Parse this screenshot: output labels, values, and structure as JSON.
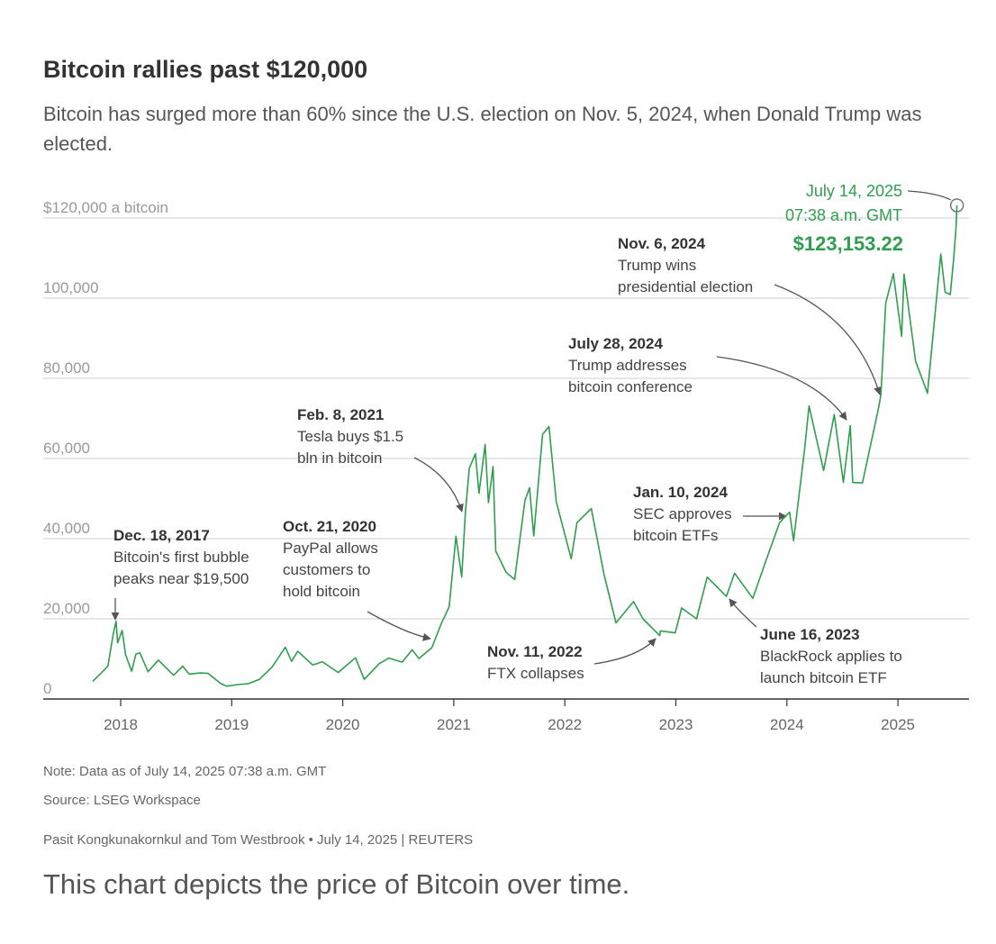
{
  "chart_data": {
    "type": "line",
    "title": "Bitcoin rallies past $120,000",
    "subtitle": "Bitcoin has surged more than 60% since the U.S. election on Nov. 5, 2024, when Donald Trump was elected.",
    "ylabel": "$120,000 a bitcoin",
    "y_ticks": [
      {
        "value": 0,
        "label": "0"
      },
      {
        "value": 20000,
        "label": "20,000"
      },
      {
        "value": 40000,
        "label": "40,000"
      },
      {
        "value": 60000,
        "label": "60,000"
      },
      {
        "value": 80000,
        "label": "80,000"
      },
      {
        "value": 100000,
        "label": "100,000"
      },
      {
        "value": 120000,
        "label": "$120,000 a bitcoin"
      }
    ],
    "x_ticks": [
      "2018",
      "2019",
      "2020",
      "2021",
      "2022",
      "2023",
      "2024",
      "2025"
    ],
    "ylim": [
      0,
      120000
    ],
    "grid": true,
    "series": [
      {
        "color": "#2f9e4f",
        "points": [
          [
            "2017-10-01",
            4400
          ],
          [
            "2017-11-01",
            6700
          ],
          [
            "2017-11-20",
            8200
          ],
          [
            "2017-12-07",
            16000
          ],
          [
            "2017-12-17",
            19400
          ],
          [
            "2017-12-22",
            14000
          ],
          [
            "2018-01-06",
            17100
          ],
          [
            "2018-01-17",
            11100
          ],
          [
            "2018-02-06",
            6900
          ],
          [
            "2018-02-20",
            11200
          ],
          [
            "2018-03-05",
            11500
          ],
          [
            "2018-04-01",
            6800
          ],
          [
            "2018-05-05",
            9700
          ],
          [
            "2018-06-24",
            5900
          ],
          [
            "2018-07-24",
            8200
          ],
          [
            "2018-08-14",
            6200
          ],
          [
            "2018-09-20",
            6500
          ],
          [
            "2018-10-15",
            6400
          ],
          [
            "2018-11-25",
            3900
          ],
          [
            "2018-12-15",
            3200
          ],
          [
            "2019-01-20",
            3600
          ],
          [
            "2019-02-24",
            3800
          ],
          [
            "2019-04-02",
            4900
          ],
          [
            "2019-05-14",
            8000
          ],
          [
            "2019-06-26",
            12900
          ],
          [
            "2019-07-17",
            9400
          ],
          [
            "2019-08-06",
            11900
          ],
          [
            "2019-09-24",
            8500
          ],
          [
            "2019-10-26",
            9300
          ],
          [
            "2019-12-17",
            6600
          ],
          [
            "2020-02-12",
            10300
          ],
          [
            "2020-03-12",
            4900
          ],
          [
            "2020-04-30",
            8800
          ],
          [
            "2020-06-01",
            10200
          ],
          [
            "2020-07-15",
            9200
          ],
          [
            "2020-08-17",
            12300
          ],
          [
            "2020-09-08",
            10100
          ],
          [
            "2020-10-21",
            12800
          ],
          [
            "2020-11-20",
            18700
          ],
          [
            "2020-12-17",
            23000
          ],
          [
            "2021-01-08",
            40600
          ],
          [
            "2021-01-27",
            30400
          ],
          [
            "2021-02-08",
            46200
          ],
          [
            "2021-02-21",
            57500
          ],
          [
            "2021-03-13",
            61200
          ],
          [
            "2021-03-25",
            51300
          ],
          [
            "2021-04-14",
            63500
          ],
          [
            "2021-04-25",
            49000
          ],
          [
            "2021-05-10",
            58000
          ],
          [
            "2021-05-19",
            36900
          ],
          [
            "2021-06-22",
            31600
          ],
          [
            "2021-07-20",
            29800
          ],
          [
            "2021-08-23",
            49500
          ],
          [
            "2021-09-07",
            52700
          ],
          [
            "2021-09-21",
            40700
          ],
          [
            "2021-10-20",
            66000
          ],
          [
            "2021-11-10",
            68000
          ],
          [
            "2021-12-04",
            49200
          ],
          [
            "2022-01-22",
            35000
          ],
          [
            "2022-02-10",
            44000
          ],
          [
            "2022-03-29",
            47500
          ],
          [
            "2022-05-10",
            31000
          ],
          [
            "2022-06-18",
            19000
          ],
          [
            "2022-08-15",
            24300
          ],
          [
            "2022-09-15",
            20000
          ],
          [
            "2022-11-09",
            15800
          ],
          [
            "2022-11-11",
            17000
          ],
          [
            "2022-12-30",
            16500
          ],
          [
            "2023-01-20",
            22700
          ],
          [
            "2023-03-10",
            20000
          ],
          [
            "2023-04-14",
            30400
          ],
          [
            "2023-06-16",
            25600
          ],
          [
            "2023-07-13",
            31400
          ],
          [
            "2023-09-11",
            25100
          ],
          [
            "2023-10-24",
            34500
          ],
          [
            "2023-12-08",
            44000
          ],
          [
            "2024-01-10",
            46600
          ],
          [
            "2024-01-23",
            39500
          ],
          [
            "2024-02-28",
            62000
          ],
          [
            "2024-03-14",
            73100
          ],
          [
            "2024-05-01",
            57000
          ],
          [
            "2024-06-05",
            71000
          ],
          [
            "2024-07-05",
            54000
          ],
          [
            "2024-07-28",
            68200
          ],
          [
            "2024-08-05",
            54000
          ],
          [
            "2024-09-06",
            53900
          ],
          [
            "2024-10-29",
            72500
          ],
          [
            "2024-11-06",
            75900
          ],
          [
            "2024-11-22",
            98900
          ],
          [
            "2024-12-17",
            106100
          ],
          [
            "2025-01-13",
            90500
          ],
          [
            "2025-01-21",
            106000
          ],
          [
            "2025-02-28",
            84300
          ],
          [
            "2025-04-08",
            76300
          ],
          [
            "2025-05-22",
            111000
          ],
          [
            "2025-06-05",
            101500
          ],
          [
            "2025-06-22",
            100900
          ],
          [
            "2025-07-03",
            109600
          ],
          [
            "2025-07-11",
            117500
          ],
          [
            "2025-07-14",
            123153.22
          ]
        ]
      }
    ],
    "annotations": [
      {
        "date": "2017-12-18",
        "value": 19500,
        "title": "Dec. 18, 2017",
        "lines": [
          "Bitcoin's first bubble",
          "peaks near $19,500"
        ]
      },
      {
        "date": "2020-10-21",
        "value": 12800,
        "title": "Oct. 21, 2020",
        "lines": [
          "PayPal allows",
          "customers to",
          "hold bitcoin"
        ]
      },
      {
        "date": "2021-02-08",
        "value": 46200,
        "title": "Feb. 8, 2021",
        "lines": [
          "Tesla buys $1.5",
          "bln in bitcoin"
        ]
      },
      {
        "date": "2022-11-11",
        "value": 17000,
        "title": "Nov. 11, 2022",
        "lines": [
          "FTX collapses"
        ]
      },
      {
        "date": "2023-06-16",
        "value": 25600,
        "title": "June 16, 2023",
        "lines": [
          "BlackRock applies to",
          "launch bitcoin ETF"
        ]
      },
      {
        "date": "2024-01-10",
        "value": 46600,
        "title": "Jan. 10, 2024",
        "lines": [
          "SEC approves",
          "bitcoin ETFs"
        ]
      },
      {
        "date": "2024-07-28",
        "value": 68200,
        "title": "July 28, 2024",
        "lines": [
          "Trump addresses",
          "bitcoin conference"
        ]
      },
      {
        "date": "2024-11-06",
        "value": 75900,
        "title": "Nov. 6, 2024",
        "lines": [
          "Trump wins",
          "presidential election"
        ]
      }
    ],
    "latest": {
      "date": "2025-07-14",
      "value": 123153.22,
      "date_label": "July 14, 2025",
      "time_label": "07:38 a.m. GMT",
      "price_label": "$123,153.22"
    }
  },
  "colors": {
    "line": "#2f9e4f",
    "grid": "#cfcfcf",
    "axis_text": "#999999",
    "annotation_title": "#333333",
    "annotation_text": "#444444",
    "arrow": "#555555"
  },
  "footer": {
    "note": "Note: Data as of July 14, 2025 07:38 a.m. GMT",
    "source": "Source: LSEG Workspace",
    "byline": "Pasit Kongkunakornkul and Tom Westbrook • July 14, 2025 | REUTERS"
  },
  "caption": "This chart depicts the price of Bitcoin over time."
}
